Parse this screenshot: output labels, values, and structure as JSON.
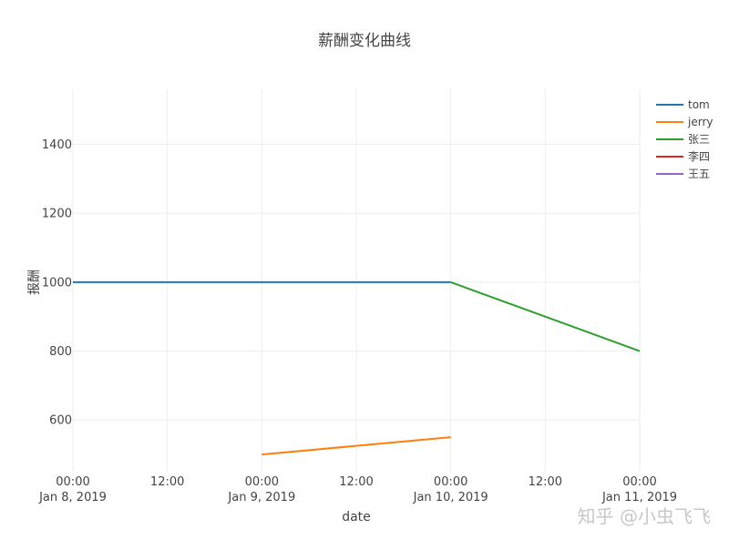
{
  "chart_data": {
    "type": "line",
    "title": "薪酬变化曲线",
    "xlabel": "date",
    "ylabel": "报酬",
    "x_range": [
      "2019-01-08 00:00",
      "2019-01-11 00:00"
    ],
    "ylim": [
      450,
      1560
    ],
    "grid": true,
    "legend_position": "top-right",
    "x_ticks": [
      {
        "value": "2019-01-08 00:00",
        "line1": "00:00",
        "line2": "Jan 8, 2019"
      },
      {
        "value": "2019-01-08 12:00",
        "line1": "12:00",
        "line2": ""
      },
      {
        "value": "2019-01-09 00:00",
        "line1": "00:00",
        "line2": "Jan 9, 2019"
      },
      {
        "value": "2019-01-09 12:00",
        "line1": "12:00",
        "line2": ""
      },
      {
        "value": "2019-01-10 00:00",
        "line1": "00:00",
        "line2": "Jan 10, 2019"
      },
      {
        "value": "2019-01-10 12:00",
        "line1": "12:00",
        "line2": ""
      },
      {
        "value": "2019-01-11 00:00",
        "line1": "00:00",
        "line2": "Jan 11, 2019"
      }
    ],
    "y_ticks": [
      600,
      800,
      1000,
      1200,
      1400
    ],
    "series": [
      {
        "name": "tom",
        "color": "#1f77b4",
        "points": [
          {
            "x": "2019-01-08 00:00",
            "y": 1000
          },
          {
            "x": "2019-01-10 00:00",
            "y": 1000
          }
        ]
      },
      {
        "name": "jerry",
        "color": "#ff7f0e",
        "points": [
          {
            "x": "2019-01-09 00:00",
            "y": 500
          },
          {
            "x": "2019-01-10 00:00",
            "y": 550
          }
        ]
      },
      {
        "name": "张三",
        "color": "#2ca02c",
        "points": [
          {
            "x": "2019-01-10 00:00",
            "y": 1000
          },
          {
            "x": "2019-01-11 00:00",
            "y": 800
          }
        ]
      },
      {
        "name": "李四",
        "color": "#d62728",
        "points": []
      },
      {
        "name": "王五",
        "color": "#9467bd",
        "points": []
      }
    ]
  },
  "watermark": "知乎 @小虫飞飞"
}
